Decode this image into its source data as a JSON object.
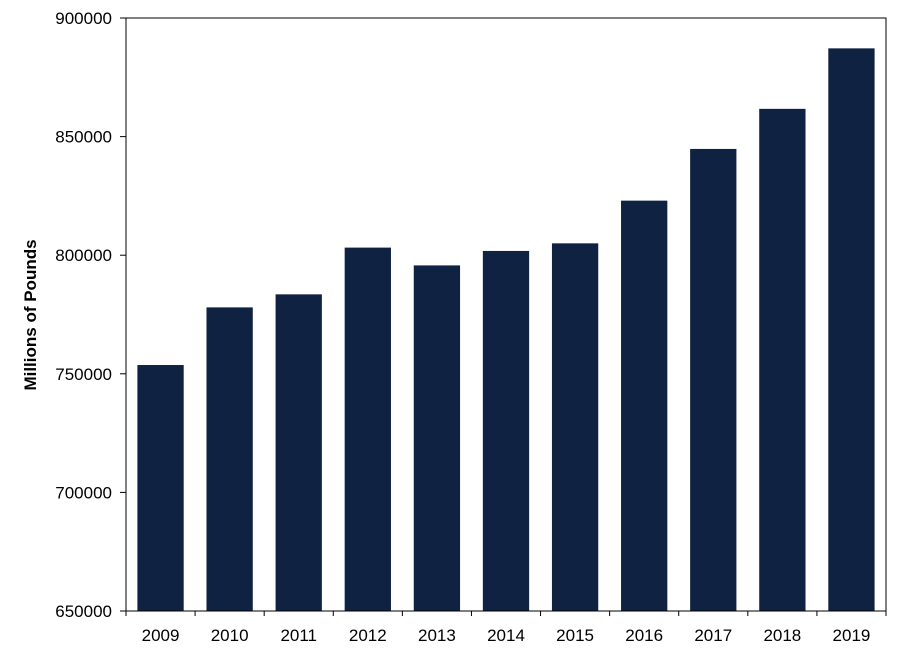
{
  "chart_data": {
    "type": "bar",
    "title": "",
    "xlabel": "",
    "ylabel": "Millions of Pounds",
    "categories": [
      "2009",
      "2010",
      "2011",
      "2012",
      "2013",
      "2014",
      "2015",
      "2016",
      "2017",
      "2018",
      "2019"
    ],
    "values": [
      753700,
      778000,
      783500,
      803200,
      795700,
      801800,
      805000,
      823000,
      844800,
      861700,
      887200
    ],
    "ylim": [
      650000,
      900000
    ],
    "yticks": [
      "650000",
      "700000",
      "750000",
      "800000",
      "850000",
      "900000"
    ],
    "grid": false,
    "legend": "none",
    "colors": {
      "bar": "#0f2241",
      "axis": "#000000"
    }
  }
}
